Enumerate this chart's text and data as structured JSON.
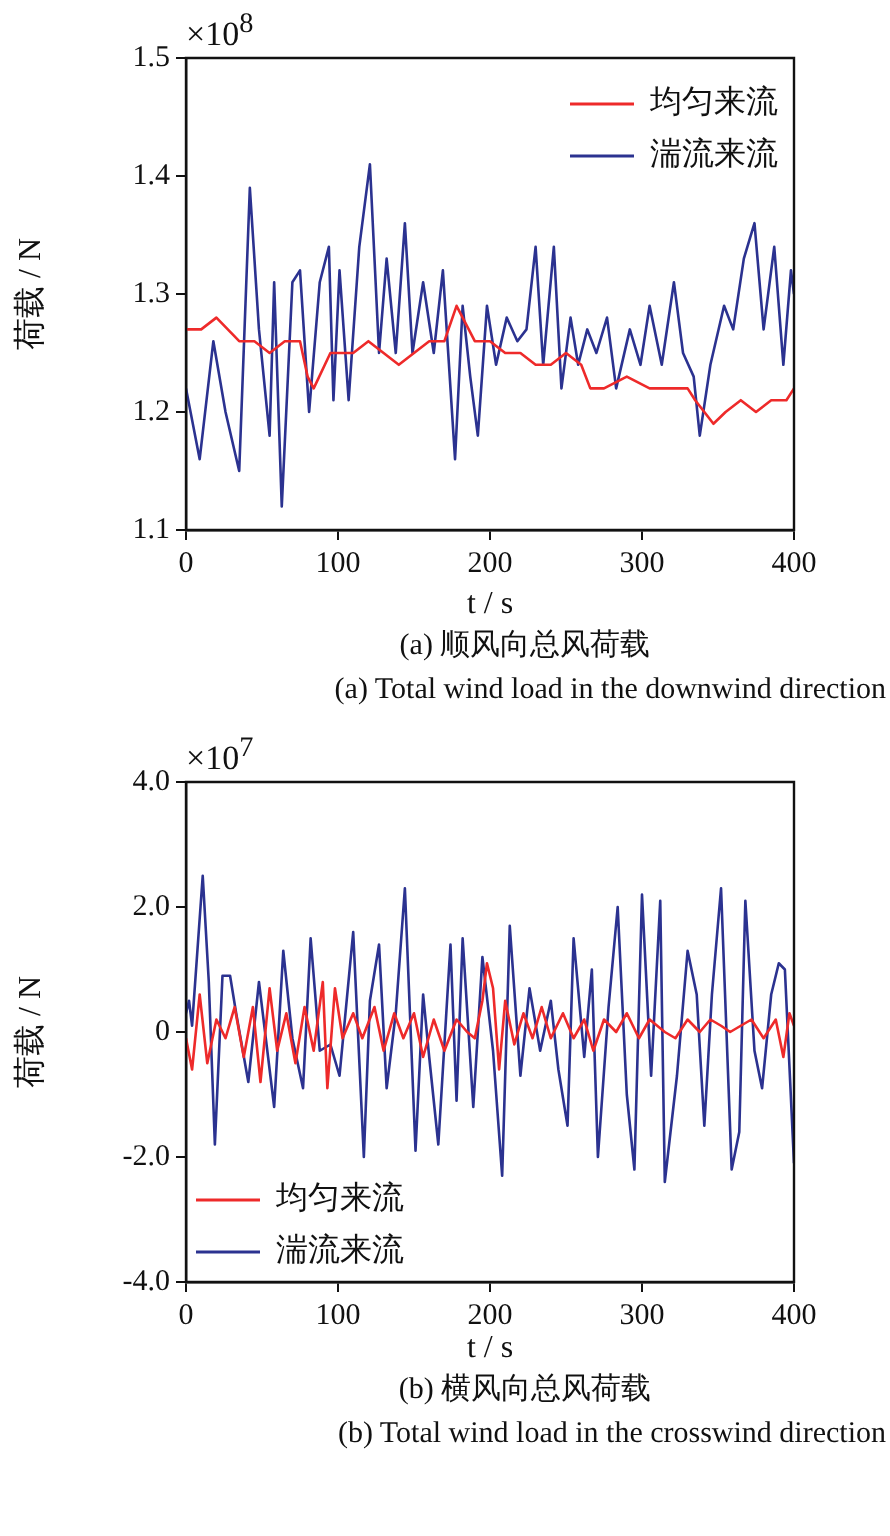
{
  "chart_data": [
    {
      "type": "line",
      "title": "(a)  顺风向总风荷载",
      "subtitle": "(a)  Total wind load in the downwind direction",
      "xlabel": "t / s",
      "ylabel": "荷载 / N",
      "annotations": [
        "×10$^{8}$"
      ],
      "xlim": [
        0,
        400
      ],
      "xticks": [
        0,
        100,
        200,
        300,
        400
      ],
      "ylim": [
        1.1,
        1.5
      ],
      "yticks": [
        1.1,
        1.2,
        1.3,
        1.4,
        1.5
      ],
      "legend": "top right",
      "line_style": "solid",
      "marker": "none",
      "series": [
        {
          "name": "均匀来流",
          "color": "#ee2a2a",
          "x": [
            0,
            10,
            20,
            35,
            45,
            55,
            65,
            75,
            80,
            84,
            95,
            110,
            120,
            130,
            140,
            150,
            160,
            170,
            178,
            190,
            200,
            210,
            220,
            230,
            240,
            250,
            260,
            266,
            275,
            290,
            305,
            320,
            330,
            335,
            347,
            355,
            365,
            375,
            385,
            395,
            400
          ],
          "values": [
            1.27,
            1.27,
            1.28,
            1.26,
            1.26,
            1.25,
            1.26,
            1.26,
            1.23,
            1.22,
            1.25,
            1.25,
            1.26,
            1.25,
            1.24,
            1.25,
            1.26,
            1.26,
            1.29,
            1.26,
            1.26,
            1.25,
            1.25,
            1.24,
            1.24,
            1.25,
            1.24,
            1.22,
            1.22,
            1.23,
            1.22,
            1.22,
            1.22,
            1.21,
            1.19,
            1.2,
            1.21,
            1.2,
            1.21,
            1.21,
            1.22
          ]
        },
        {
          "name": "湍流来流",
          "color": "#2b3290",
          "x": [
            0,
            9,
            18,
            26,
            35,
            42,
            48,
            55,
            58,
            63,
            70,
            75,
            81,
            88,
            94,
            97,
            101,
            107,
            114,
            121,
            127,
            132,
            138,
            144,
            149,
            156,
            163,
            169,
            177,
            182,
            187,
            192,
            198,
            204,
            211,
            218,
            224,
            230,
            235,
            242,
            247,
            253,
            258,
            264,
            270,
            277,
            283,
            292,
            299,
            305,
            313,
            321,
            327,
            334,
            338,
            345,
            354,
            360,
            367,
            374,
            380,
            387,
            393,
            398,
            400
          ],
          "values": [
            1.22,
            1.16,
            1.26,
            1.2,
            1.15,
            1.39,
            1.27,
            1.18,
            1.31,
            1.12,
            1.31,
            1.32,
            1.2,
            1.31,
            1.34,
            1.21,
            1.32,
            1.21,
            1.34,
            1.41,
            1.25,
            1.33,
            1.25,
            1.36,
            1.25,
            1.31,
            1.25,
            1.32,
            1.16,
            1.29,
            1.23,
            1.18,
            1.29,
            1.24,
            1.28,
            1.26,
            1.27,
            1.34,
            1.24,
            1.34,
            1.22,
            1.28,
            1.24,
            1.27,
            1.25,
            1.28,
            1.22,
            1.27,
            1.24,
            1.29,
            1.24,
            1.31,
            1.25,
            1.23,
            1.18,
            1.24,
            1.29,
            1.27,
            1.33,
            1.36,
            1.27,
            1.34,
            1.24,
            1.32,
            1.3
          ]
        }
      ]
    },
    {
      "type": "line",
      "title": "(b)  横风向总风荷载",
      "subtitle": "(b)  Total wind load in the crosswind direction",
      "xlabel": "t / s",
      "ylabel": "荷载 / N",
      "annotations": [
        "×10$^{7}$"
      ],
      "xlim": [
        0,
        400
      ],
      "xticks": [
        0,
        100,
        200,
        300,
        400
      ],
      "ylim": [
        -4,
        4
      ],
      "yticks": [
        {
          "value": -4,
          "label": "-4.0"
        },
        {
          "value": -2,
          "label": "-2.0"
        },
        0,
        {
          "value": 2,
          "label": "2.0"
        },
        {
          "value": 4,
          "label": "4.0"
        }
      ],
      "legend": "bottom left",
      "line_style": "solid",
      "marker": "none",
      "series": [
        {
          "name": "均匀来流",
          "color": "#ee2a2a",
          "x": [
            0,
            4,
            9,
            14,
            20,
            26,
            32,
            38,
            44,
            49,
            55,
            60,
            66,
            72,
            78,
            84,
            90,
            93,
            98,
            103,
            110,
            116,
            124,
            130,
            137,
            143,
            150,
            156,
            163,
            170,
            178,
            185,
            190,
            195,
            198,
            202,
            206,
            210,
            216,
            222,
            228,
            234,
            240,
            248,
            255,
            262,
            268,
            275,
            283,
            290,
            298,
            305,
            315,
            322,
            330,
            338,
            345,
            352,
            358,
            365,
            372,
            380,
            388,
            393,
            397,
            400
          ],
          "values": [
            -0.1,
            -0.6,
            0.6,
            -0.5,
            0.2,
            -0.1,
            0.4,
            -0.4,
            0.4,
            -0.8,
            0.7,
            -0.3,
            0.3,
            -0.5,
            0.4,
            -0.3,
            0.8,
            -0.9,
            0.7,
            -0.1,
            0.3,
            -0.1,
            0.4,
            -0.3,
            0.3,
            -0.1,
            0.3,
            -0.4,
            0.2,
            -0.3,
            0.2,
            0,
            -0.1,
            0.5,
            1.1,
            0.7,
            -0.6,
            0.5,
            -0.2,
            0.3,
            -0.1,
            0.4,
            -0.1,
            0.3,
            -0.1,
            0.2,
            -0.3,
            0.2,
            0,
            0.3,
            -0.1,
            0.2,
            0,
            -0.1,
            0.2,
            0,
            0.2,
            0.1,
            0,
            0.1,
            0.2,
            -0.1,
            0.2,
            -0.4,
            0.3,
            0.1
          ]
        },
        {
          "name": "湍流来流",
          "color": "#2b3290",
          "x": [
            0,
            2,
            4,
            11,
            15,
            19,
            24,
            29,
            33,
            41,
            48,
            54,
            58,
            64,
            70,
            77,
            82,
            88,
            95,
            101,
            110,
            117,
            121,
            127,
            132,
            138,
            144,
            151,
            156,
            160,
            166,
            174,
            178,
            182,
            189,
            195,
            202,
            208,
            213,
            220,
            226,
            233,
            240,
            245,
            251,
            255,
            262,
            267,
            271,
            278,
            284,
            290,
            295,
            300,
            306,
            312,
            315,
            323,
            330,
            336,
            341,
            346,
            352,
            359,
            364,
            368,
            374,
            379,
            385,
            390,
            394,
            400
          ],
          "values": [
            0.3,
            0.5,
            0.1,
            2.5,
            0.8,
            -1.8,
            0.9,
            0.9,
            0.3,
            -0.8,
            0.8,
            -0.4,
            -1.2,
            1.3,
            -0.1,
            -0.9,
            1.5,
            -0.3,
            -0.2,
            -0.7,
            1.6,
            -2,
            0.5,
            1.4,
            -0.9,
            0.3,
            2.3,
            -1.9,
            0.6,
            -0.4,
            -1.8,
            1.4,
            -1.1,
            1.5,
            -1.2,
            1.2,
            -0.3,
            -2.3,
            1.7,
            -0.7,
            0.7,
            -0.3,
            0.5,
            -0.6,
            -1.5,
            1.5,
            -0.4,
            1,
            -2,
            0.4,
            2,
            -1,
            -2.2,
            2.2,
            -0.7,
            2.1,
            -2.4,
            -0.7,
            1.3,
            0.6,
            -1.5,
            0.6,
            2.3,
            -2.2,
            -1.6,
            2.1,
            -0.3,
            -0.9,
            0.6,
            1.1,
            1,
            -2.1
          ]
        }
      ]
    }
  ]
}
